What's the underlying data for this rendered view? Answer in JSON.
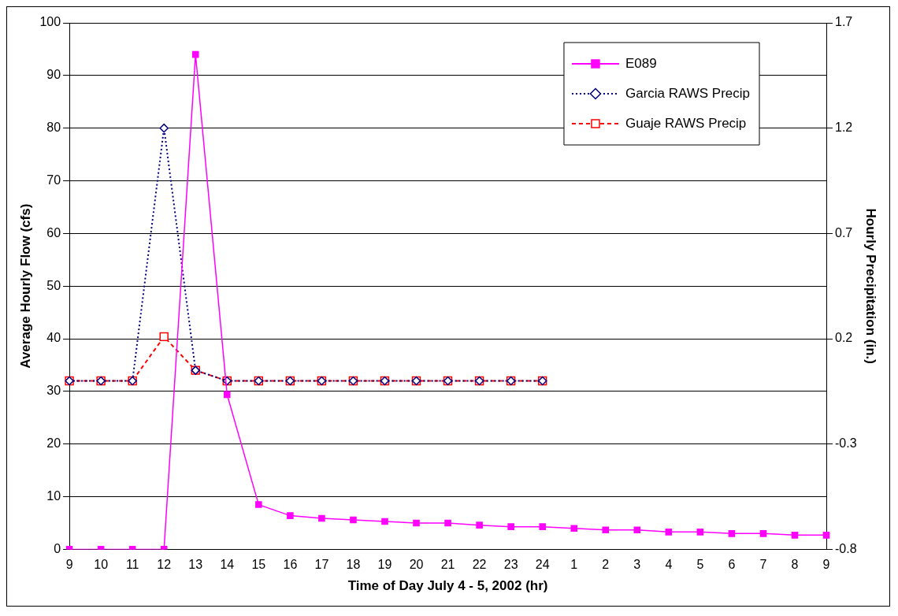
{
  "chart_data": {
    "type": "line",
    "xlabel": "Time of Day July 4 - 5, 2002 (hr)",
    "ylabel": "Average Hourly Flow (cfs)",
    "y2label": "Hourly Precipitation (in.)",
    "categories": [
      "9",
      "10",
      "11",
      "12",
      "13",
      "14",
      "15",
      "16",
      "17",
      "18",
      "19",
      "20",
      "21",
      "22",
      "23",
      "24",
      "1",
      "2",
      "3",
      "4",
      "5",
      "6",
      "7",
      "8",
      "9"
    ],
    "series": [
      {
        "name": "E089",
        "color": "#ff00ff",
        "marker": "square",
        "line_style": "solid",
        "values": [
          0,
          0,
          0,
          0,
          94,
          29.4,
          8.5,
          6.4,
          5.9,
          5.6,
          5.3,
          5.0,
          5.0,
          4.6,
          4.3,
          4.3,
          4.0,
          3.7,
          3.7,
          3.3,
          3.3,
          3.0,
          3.0,
          2.7,
          2.7
        ]
      },
      {
        "name": "Garcia RAWS Precip",
        "color": "#000080",
        "marker": "diamond",
        "line_style": "dotted",
        "axis": "y2",
        "values": [
          0,
          0,
          0,
          1.2,
          0.05,
          0,
          0,
          0,
          0,
          0,
          0,
          0,
          0,
          0,
          0,
          0,
          null,
          null,
          null,
          null,
          null,
          null,
          null,
          null,
          null
        ]
      },
      {
        "name": "Guaje RAWS Precip",
        "color": "#ff0000",
        "marker": "square",
        "line_style": "dashed",
        "axis": "y2",
        "values": [
          0,
          0,
          0,
          0.21,
          0.05,
          0,
          0,
          0,
          0,
          0,
          0,
          0,
          0,
          0,
          0,
          0,
          null,
          null,
          null,
          null,
          null,
          null,
          null,
          null,
          null
        ]
      }
    ],
    "ylim": [
      0,
      100
    ],
    "yticks": [
      0,
      10,
      20,
      30,
      40,
      50,
      60,
      70,
      80,
      90,
      100
    ],
    "y2lim": [
      -0.8,
      1.7
    ],
    "y2ticks": [
      -0.8,
      -0.3,
      0.2,
      0.7,
      1.2,
      1.7
    ],
    "grid": "y",
    "legend": "top right"
  }
}
